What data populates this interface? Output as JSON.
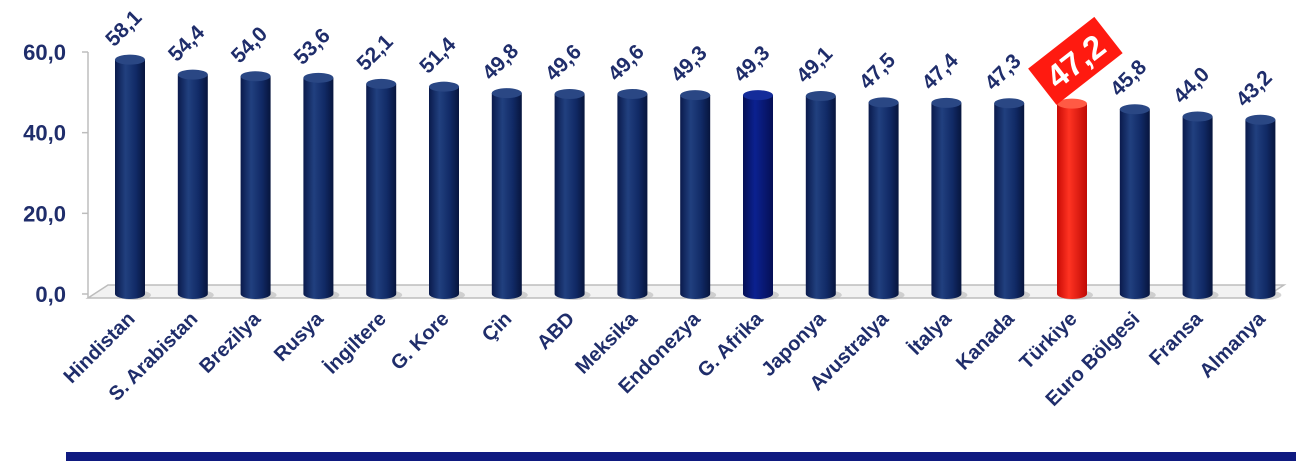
{
  "chart_data": {
    "type": "bar",
    "title": "",
    "xlabel": "",
    "ylabel": "",
    "ylim": [
      0,
      60
    ],
    "yticks": [
      "0,0",
      "20,0",
      "40,0",
      "60,0"
    ],
    "grid": false,
    "legend": "none",
    "categories": [
      "Hindistan",
      "S. Arabistan",
      "Brezilya",
      "Rusya",
      "İngiltere",
      "G. Kore",
      "Çin",
      "ABD",
      "Meksika",
      "Endonezya",
      "G. Afrika",
      "Japonya",
      "Avustralya",
      "İtalya",
      "Kanada",
      "Türkiye",
      "Euro Bölgesi",
      "Fransa",
      "Almanya"
    ],
    "values": [
      58.1,
      54.4,
      54.0,
      53.6,
      52.1,
      51.4,
      49.8,
      49.6,
      49.6,
      49.3,
      49.3,
      49.1,
      47.5,
      47.4,
      47.3,
      47.2,
      45.8,
      44.0,
      43.2
    ],
    "value_labels": [
      "58,1",
      "54,4",
      "54,0",
      "53,6",
      "52,1",
      "51,4",
      "49,8",
      "49,6",
      "49,6",
      "49,3",
      "49,3",
      "49,1",
      "47,5",
      "47,4",
      "47,3",
      "47,2",
      "45,8",
      "44,0",
      "43,2"
    ],
    "highlight_index": 15,
    "colors": {
      "bar": "#0f2a6e",
      "bar_alt": "#071a6e",
      "highlight": "#ff1a10",
      "text": "#1f2d6b",
      "floor": "#cfcfcf",
      "rule": "#0f1a80"
    }
  }
}
